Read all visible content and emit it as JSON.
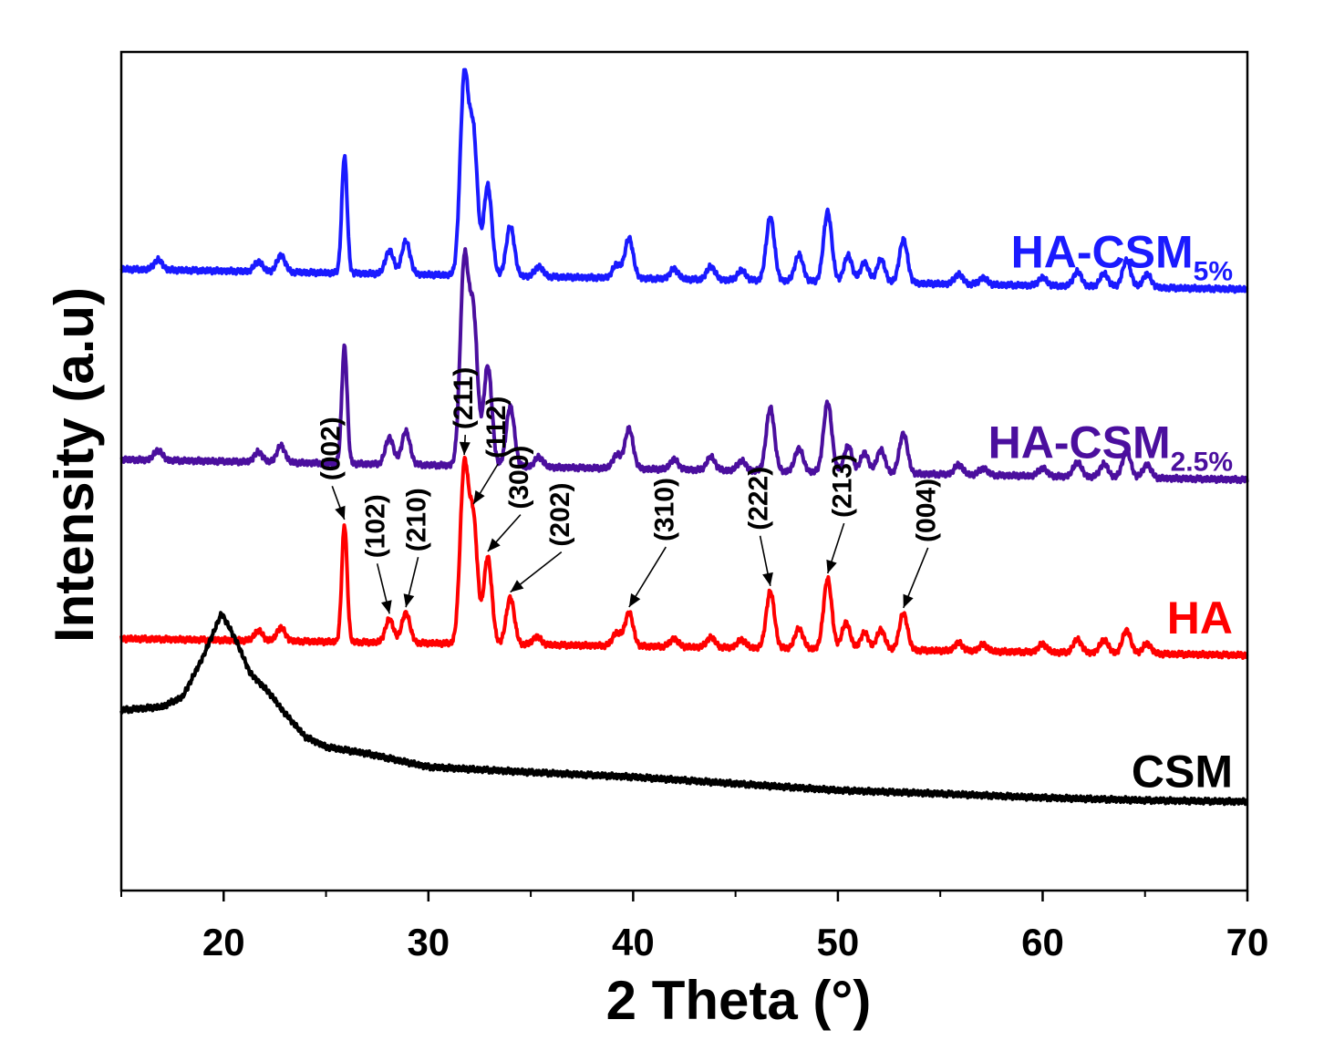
{
  "chart_data": {
    "type": "line",
    "title": "",
    "xlabel": "2 Theta (°)",
    "ylabel": "Intensity (a.u)",
    "xlim": [
      15,
      70
    ],
    "xticks": [
      20,
      30,
      40,
      50,
      60,
      70
    ],
    "yticks": "none",
    "y_units": "arbitrary intensity units (stacked, vertically offset)",
    "series": [
      {
        "name": "HA-CSM",
        "subscript": "5%",
        "color": "#1a1aff",
        "baseline": 8.15,
        "slope": -0.0055,
        "peaks": [
          [
            16.8,
            0.15,
            0.2
          ],
          [
            21.7,
            0.15,
            0.2
          ],
          [
            22.8,
            0.25,
            0.2
          ],
          [
            25.9,
            1.75,
            0.13
          ],
          [
            28.1,
            0.35,
            0.2
          ],
          [
            28.9,
            0.5,
            0.2
          ],
          [
            31.75,
            2.9,
            0.2
          ],
          [
            32.2,
            2.05,
            0.2
          ],
          [
            32.9,
            1.35,
            0.2
          ],
          [
            34.0,
            0.75,
            0.2
          ],
          [
            35.4,
            0.15,
            0.2
          ],
          [
            39.2,
            0.2,
            0.2
          ],
          [
            39.8,
            0.6,
            0.2
          ],
          [
            42.0,
            0.15,
            0.2
          ],
          [
            43.8,
            0.2,
            0.2
          ],
          [
            45.3,
            0.15,
            0.2
          ],
          [
            46.7,
            0.95,
            0.2
          ],
          [
            48.1,
            0.4,
            0.2
          ],
          [
            49.5,
            1.05,
            0.2
          ],
          [
            50.5,
            0.4,
            0.2
          ],
          [
            51.3,
            0.3,
            0.2
          ],
          [
            52.1,
            0.35,
            0.2
          ],
          [
            53.2,
            0.65,
            0.2
          ],
          [
            55.9,
            0.15,
            0.2
          ],
          [
            57.1,
            0.1,
            0.2
          ],
          [
            60.0,
            0.12,
            0.2
          ],
          [
            61.7,
            0.22,
            0.2
          ],
          [
            63.0,
            0.2,
            0.2
          ],
          [
            64.1,
            0.4,
            0.2
          ],
          [
            65.1,
            0.2,
            0.2
          ]
        ]
      },
      {
        "name": "HA-CSM",
        "subscript": "2.5%",
        "color": "#4b0f9e",
        "baseline": 5.3,
        "slope": -0.0055,
        "peaks": [
          [
            16.8,
            0.15,
            0.2
          ],
          [
            21.7,
            0.15,
            0.2
          ],
          [
            22.8,
            0.25,
            0.2
          ],
          [
            25.9,
            1.75,
            0.13
          ],
          [
            28.1,
            0.4,
            0.2
          ],
          [
            28.9,
            0.5,
            0.2
          ],
          [
            31.75,
            3.0,
            0.2
          ],
          [
            32.2,
            2.2,
            0.2
          ],
          [
            32.9,
            1.5,
            0.2
          ],
          [
            34.0,
            0.9,
            0.2
          ],
          [
            35.4,
            0.15,
            0.2
          ],
          [
            39.2,
            0.2,
            0.2
          ],
          [
            39.8,
            0.6,
            0.2
          ],
          [
            42.0,
            0.15,
            0.2
          ],
          [
            43.8,
            0.2,
            0.2
          ],
          [
            45.3,
            0.15,
            0.2
          ],
          [
            46.7,
            0.95,
            0.2
          ],
          [
            48.1,
            0.35,
            0.2
          ],
          [
            49.5,
            1.05,
            0.2
          ],
          [
            50.5,
            0.4,
            0.2
          ],
          [
            51.3,
            0.3,
            0.2
          ],
          [
            52.1,
            0.35,
            0.2
          ],
          [
            53.2,
            0.6,
            0.2
          ],
          [
            55.9,
            0.15,
            0.2
          ],
          [
            57.1,
            0.1,
            0.2
          ],
          [
            60.0,
            0.12,
            0.2
          ],
          [
            61.7,
            0.22,
            0.2
          ],
          [
            63.0,
            0.2,
            0.2
          ],
          [
            64.1,
            0.4,
            0.2
          ],
          [
            65.1,
            0.2,
            0.2
          ]
        ]
      },
      {
        "name": "HA",
        "subscript": "",
        "color": "#ff0000",
        "baseline": 2.62,
        "slope": -0.0045,
        "peaks": [
          [
            21.7,
            0.15,
            0.2
          ],
          [
            22.8,
            0.2,
            0.2
          ],
          [
            25.9,
            1.75,
            0.13
          ],
          [
            28.1,
            0.35,
            0.2
          ],
          [
            28.9,
            0.45,
            0.2
          ],
          [
            31.75,
            2.6,
            0.2
          ],
          [
            32.2,
            1.8,
            0.2
          ],
          [
            32.9,
            1.3,
            0.2
          ],
          [
            34.0,
            0.7,
            0.2
          ],
          [
            35.3,
            0.12,
            0.2
          ],
          [
            39.2,
            0.2,
            0.2
          ],
          [
            39.8,
            0.5,
            0.2
          ],
          [
            42.0,
            0.12,
            0.2
          ],
          [
            43.8,
            0.15,
            0.2
          ],
          [
            45.3,
            0.12,
            0.2
          ],
          [
            46.7,
            0.85,
            0.2
          ],
          [
            48.1,
            0.3,
            0.2
          ],
          [
            49.5,
            1.05,
            0.2
          ],
          [
            50.4,
            0.4,
            0.2
          ],
          [
            51.3,
            0.25,
            0.2
          ],
          [
            52.1,
            0.3,
            0.2
          ],
          [
            53.2,
            0.55,
            0.2
          ],
          [
            55.9,
            0.12,
            0.2
          ],
          [
            57.1,
            0.1,
            0.2
          ],
          [
            60.0,
            0.12,
            0.2
          ],
          [
            61.7,
            0.2,
            0.2
          ],
          [
            63.0,
            0.2,
            0.2
          ],
          [
            64.1,
            0.35,
            0.2
          ],
          [
            65.1,
            0.15,
            0.2
          ]
        ]
      },
      {
        "name": "CSM",
        "subscript": "",
        "color": "#000000",
        "baseline": 0.0,
        "profile": [
          [
            15,
            1.55
          ],
          [
            17,
            1.6
          ],
          [
            18,
            1.75
          ],
          [
            19,
            2.35
          ],
          [
            19.9,
            3.0
          ],
          [
            20.6,
            2.6
          ],
          [
            21.3,
            2.1
          ],
          [
            22.2,
            1.82
          ],
          [
            23.0,
            1.5
          ],
          [
            24.0,
            1.15
          ],
          [
            25.0,
            1.0
          ],
          [
            27.0,
            0.9
          ],
          [
            30.0,
            0.7
          ],
          [
            35.0,
            0.62
          ],
          [
            40.0,
            0.55
          ],
          [
            45.0,
            0.45
          ],
          [
            50.0,
            0.35
          ],
          [
            55.0,
            0.3
          ],
          [
            60.0,
            0.24
          ],
          [
            65.0,
            0.2
          ],
          [
            70.0,
            0.18
          ]
        ]
      }
    ],
    "annotations": [
      {
        "label": "(002)",
        "peak_x": 25.9,
        "series": 2,
        "dx": -0.6,
        "dy": 0.5
      },
      {
        "label": "(102)",
        "peak_x": 28.1,
        "series": 2,
        "dx": -0.6,
        "dy": 0.75
      },
      {
        "label": "(210)",
        "peak_x": 28.9,
        "series": 2,
        "dx": 0.6,
        "dy": 0.75
      },
      {
        "label": "(211)",
        "peak_x": 31.75,
        "series": 2,
        "dx": 0.05,
        "dy": 0.3
      },
      {
        "label": "(112)",
        "peak_x": 32.2,
        "series": 2,
        "dx": 1.2,
        "dy": 0.6
      },
      {
        "label": "(300)",
        "peak_x": 32.9,
        "series": 2,
        "dx": 1.6,
        "dy": 0.55
      },
      {
        "label": "(202)",
        "peak_x": 34.0,
        "series": 2,
        "dx": 2.5,
        "dy": 0.6
      },
      {
        "label": "(310)",
        "peak_x": 39.8,
        "series": 2,
        "dx": 1.8,
        "dy": 0.9
      },
      {
        "label": "(222)",
        "peak_x": 46.7,
        "series": 2,
        "dx": -0.5,
        "dy": 0.75
      },
      {
        "label": "(213)",
        "peak_x": 49.5,
        "series": 2,
        "dx": 0.8,
        "dy": 0.75
      },
      {
        "label": "(004)",
        "peak_x": 53.2,
        "series": 2,
        "dx": 1.2,
        "dy": 0.9
      }
    ],
    "legend_placement": "labels at right end of each trace"
  }
}
